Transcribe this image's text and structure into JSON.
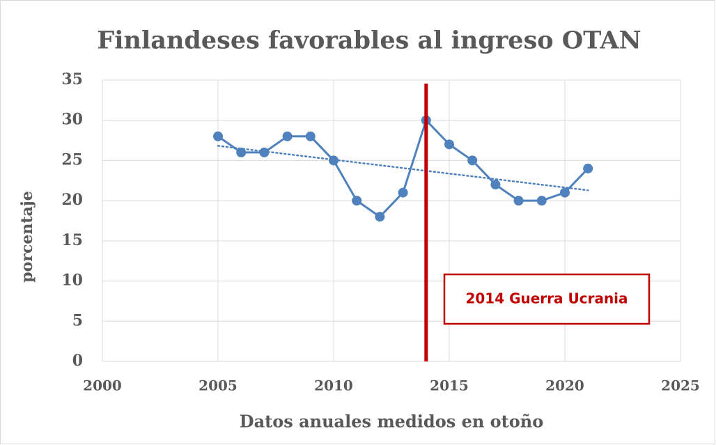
{
  "chart_data": {
    "type": "line",
    "title": "Finlandeses favorables al ingreso OTAN",
    "x_label": "Datos anuales medidos en otoño",
    "y_label": "porcentaje",
    "x": [
      2005,
      2006,
      2007,
      2008,
      2009,
      2010,
      2011,
      2012,
      2013,
      2014,
      2015,
      2016,
      2017,
      2018,
      2019,
      2020,
      2021
    ],
    "series": [
      {
        "color": "#4f81bd",
        "values": [
          28,
          26,
          26,
          28,
          28,
          25,
          20,
          18,
          21,
          30,
          27,
          25,
          22,
          20,
          20,
          21,
          24
        ]
      }
    ],
    "trendline": "linear",
    "xlim": [
      2000,
      2025
    ],
    "xticks": [
      2000,
      2005,
      2010,
      2015,
      2020,
      2025
    ],
    "ylim": [
      0,
      35
    ],
    "yticks": [
      0,
      5,
      10,
      15,
      20,
      25,
      30,
      35
    ],
    "grid": true,
    "annotation": {
      "x": 2014,
      "text": "2014 Guerra Ucrania",
      "color": "#c00000"
    }
  }
}
